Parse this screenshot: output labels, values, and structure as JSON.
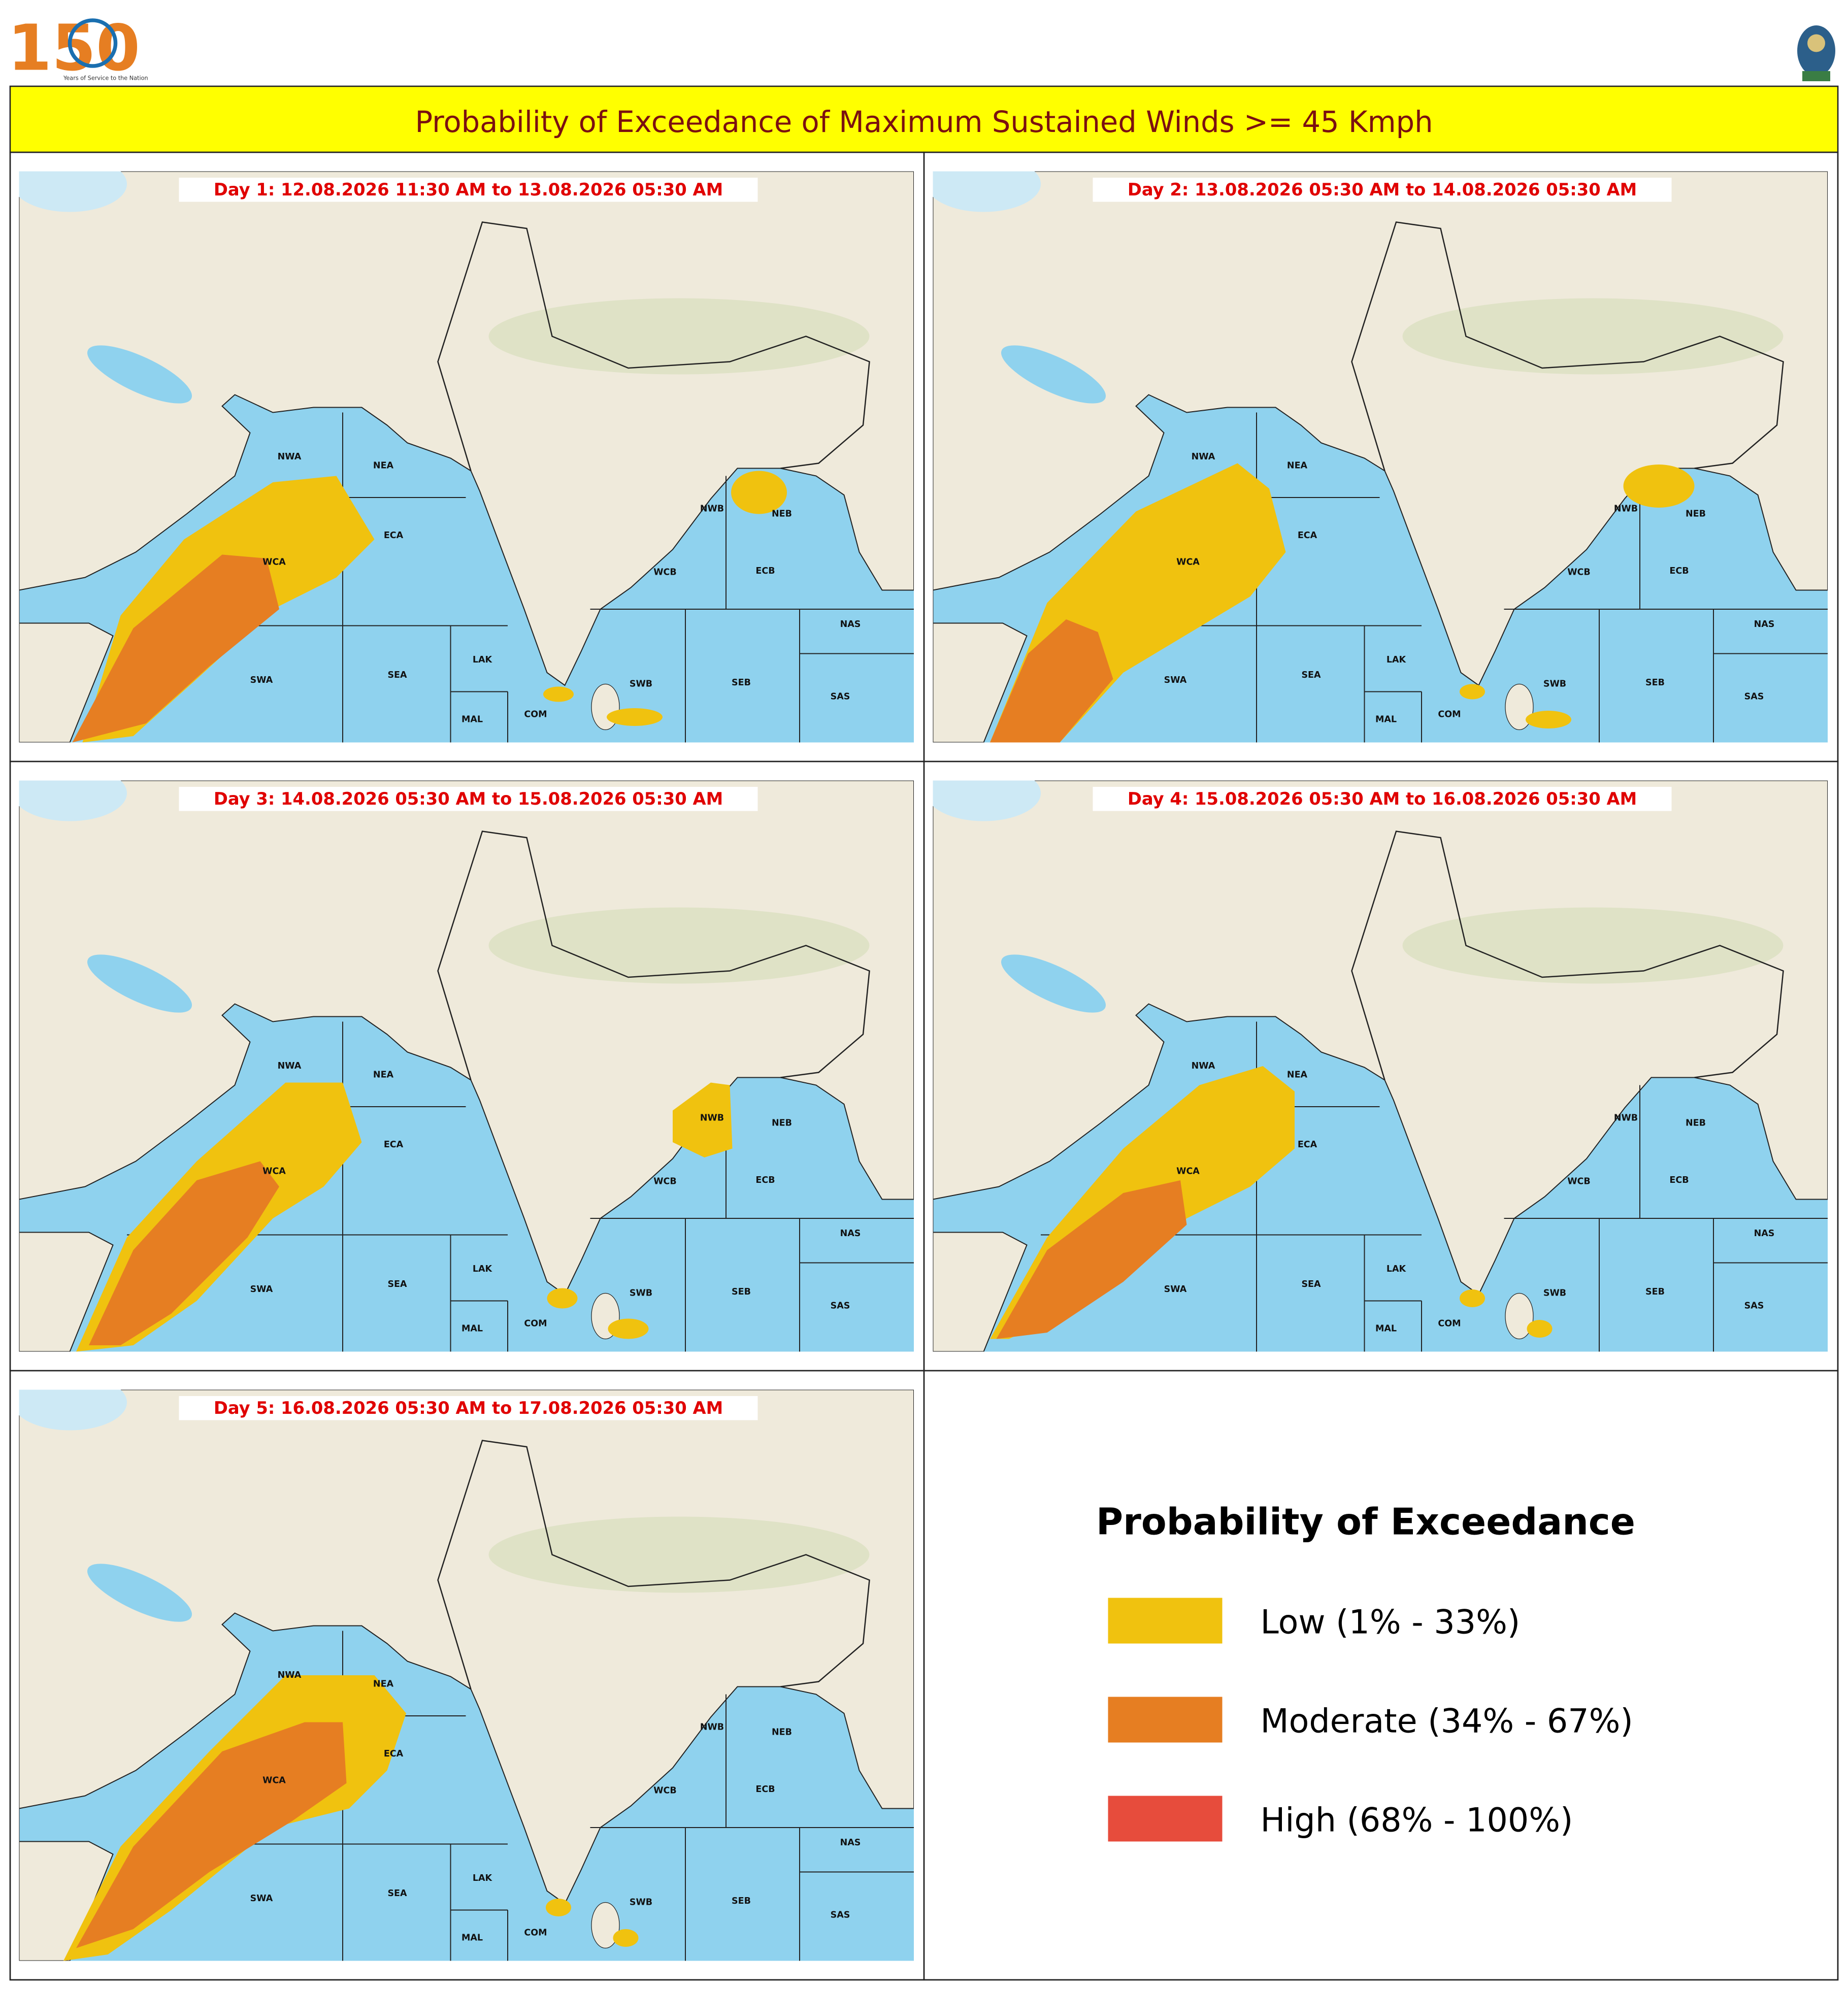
{
  "header": {
    "logo_number": "150",
    "logo_caption": "Years of Service to the Nation",
    "title": "Probability of Exceedance of Maximum Sustained Winds >= 45 Kmph"
  },
  "panels": [
    {
      "label": "Day 1: 12.08.2026 11:30 AM to 13.08.2026 05:30 AM"
    },
    {
      "label": "Day 2: 13.08.2026 05:30 AM to 14.08.2026 05:30 AM"
    },
    {
      "label": "Day 3: 14.08.2026 05:30 AM to 15.08.2026 05:30 AM"
    },
    {
      "label": "Day 4: 15.08.2026 05:30 AM to 16.08.2026 05:30 AM"
    },
    {
      "label": "Day 5: 16.08.2026 05:30 AM to 17.08.2026 05:30 AM"
    }
  ],
  "regions": [
    "NWA",
    "NEA",
    "ECA",
    "WCA",
    "SWA",
    "SEA",
    "LAK",
    "MAL",
    "COM",
    "SWB",
    "SEB",
    "NAS",
    "SAS",
    "NWB",
    "NEB",
    "WCB",
    "ECB"
  ],
  "legend": {
    "title": "Probability of Exceedance",
    "items": [
      {
        "label": "Low (1% - 33%)",
        "color": "#f0c20f"
      },
      {
        "label": "Moderate (34% - 67%)",
        "color": "#e67e22"
      },
      {
        "label": "High (68% - 100%)",
        "color": "#e74c3c"
      }
    ]
  }
}
